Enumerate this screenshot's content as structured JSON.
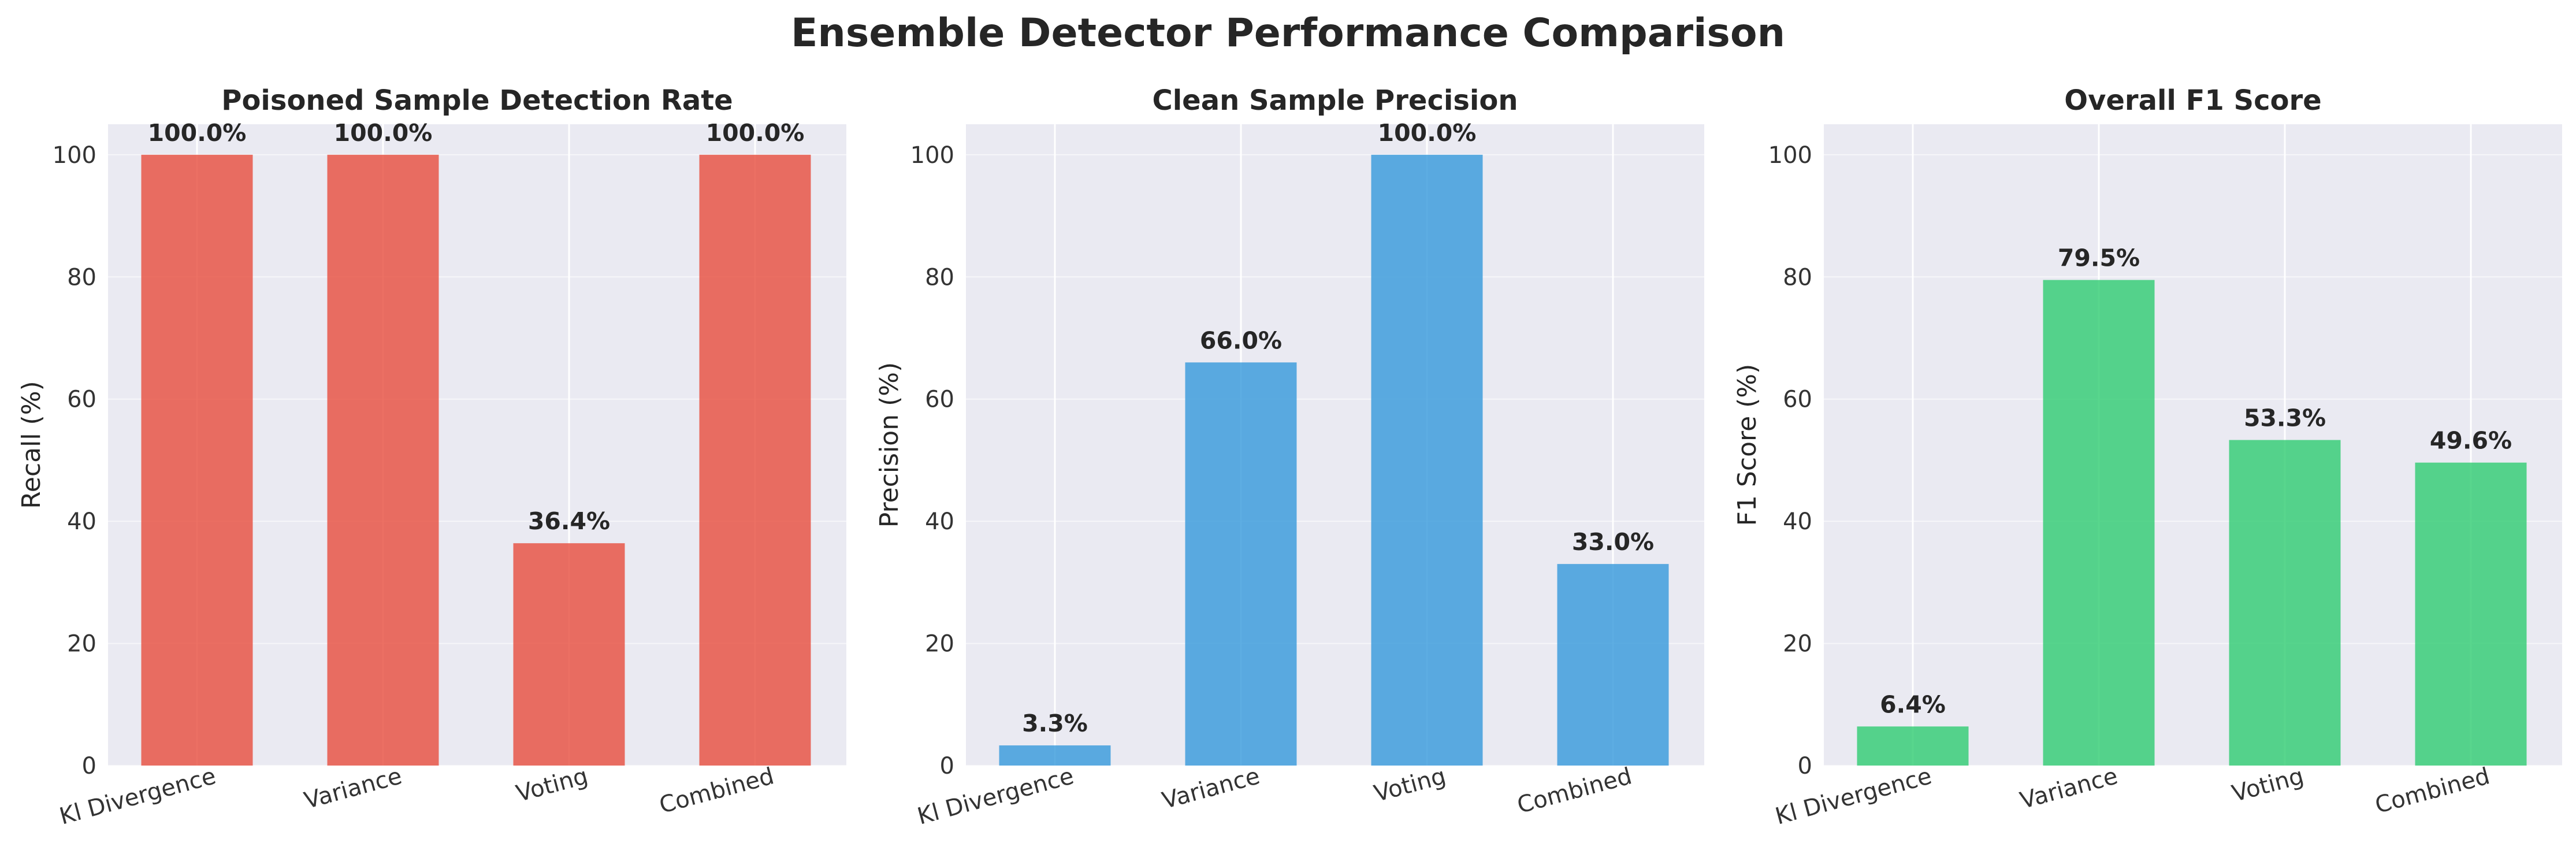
{
  "figure_title": "Ensemble Detector Performance Comparison",
  "colors": {
    "panel_bg": "#eaeaf2",
    "grid": "#ffffff",
    "text": "#262626",
    "tick_text": "#333333"
  },
  "chart_data": [
    {
      "type": "bar",
      "title": "Poisoned Sample Detection Rate",
      "xlabel": "",
      "ylabel": "Recall (%)",
      "categories": [
        "Kl Divergence",
        "Variance",
        "Voting",
        "Combined"
      ],
      "values": [
        100.0,
        100.0,
        36.4,
        100.0
      ],
      "value_labels": [
        "100.0%",
        "100.0%",
        "36.4%",
        "100.0%"
      ],
      "ylim": [
        0,
        105
      ],
      "yticks": [
        0,
        20,
        40,
        60,
        80,
        100
      ],
      "color": "#e74c3c",
      "grid": true
    },
    {
      "type": "bar",
      "title": "Clean Sample Precision",
      "xlabel": "",
      "ylabel": "Precision (%)",
      "categories": [
        "Kl Divergence",
        "Variance",
        "Voting",
        "Combined"
      ],
      "values": [
        3.3,
        66.0,
        100.0,
        33.0
      ],
      "value_labels": [
        "3.3%",
        "66.0%",
        "100.0%",
        "33.0%"
      ],
      "ylim": [
        0,
        105
      ],
      "yticks": [
        0,
        20,
        40,
        60,
        80,
        100
      ],
      "color": "#3498db",
      "grid": true
    },
    {
      "type": "bar",
      "title": "Overall F1 Score",
      "xlabel": "",
      "ylabel": "F1 Score (%)",
      "categories": [
        "Kl Divergence",
        "Variance",
        "Voting",
        "Combined"
      ],
      "values": [
        6.4,
        79.5,
        53.3,
        49.6
      ],
      "value_labels": [
        "6.4%",
        "79.5%",
        "53.3%",
        "49.6%"
      ],
      "ylim": [
        0,
        105
      ],
      "yticks": [
        0,
        20,
        40,
        60,
        80,
        100
      ],
      "color": "#2ecc71",
      "grid": true
    }
  ]
}
